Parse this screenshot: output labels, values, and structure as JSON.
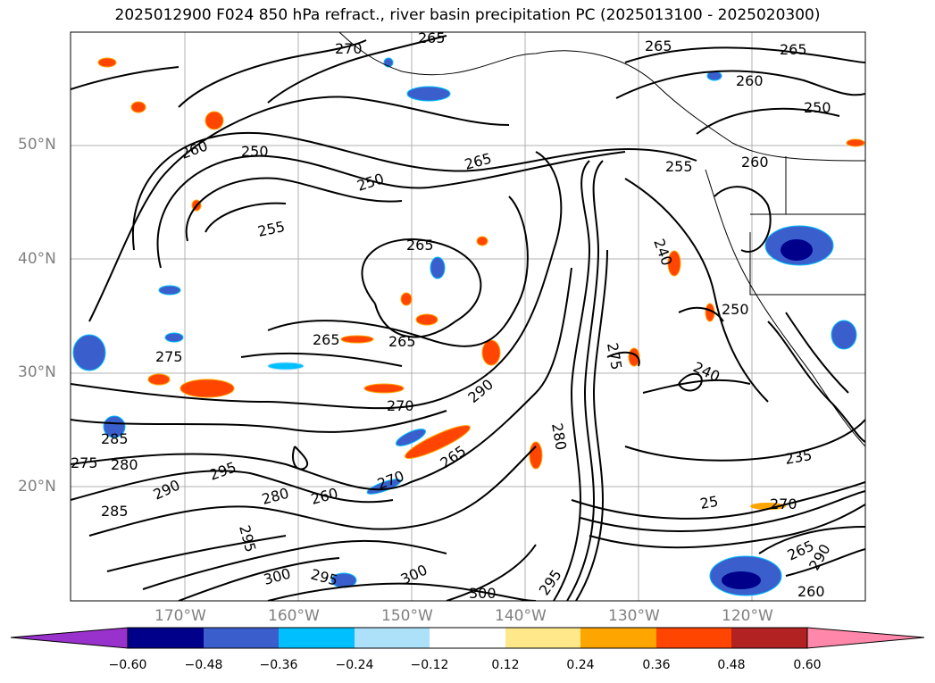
{
  "title": "2025012900 F024 850 hPa refract., river basin precipitation PC (2025013100 - 2025020300)",
  "lat_labels": [
    "50°N",
    "40°N",
    "30°N",
    "20°N"
  ],
  "lon_labels": [
    "170°W",
    "160°W",
    "150°W",
    "140°W",
    "130°W",
    "120°W"
  ],
  "contour_labels": [
    "270",
    "265",
    "265",
    "265",
    "260",
    "250",
    "260",
    "250",
    "250",
    "255",
    "265",
    "255",
    "260",
    "265",
    "265",
    "240",
    "265",
    "275",
    "270",
    "290",
    "285",
    "280",
    "275",
    "295",
    "290",
    "285",
    "280",
    "265",
    "260",
    "295",
    "300",
    "295",
    "300",
    "300",
    "295",
    "280",
    "275",
    "270",
    "240",
    "235",
    "25",
    "270",
    "265",
    "290",
    "260",
    "250"
  ],
  "colorbar": {
    "tick_labels": [
      "−0.60",
      "−0.48",
      "−0.36",
      "−0.24",
      "−0.12",
      "0.12",
      "0.24",
      "0.36",
      "0.48",
      "0.60"
    ],
    "colors": [
      "#9932CC",
      "#00008B",
      "#3A5FCD",
      "#00BFFF",
      "#ADE1FA",
      "#FFFFFF",
      "#FFE88A",
      "#FFA500",
      "#FF4500",
      "#B22222",
      "#FF88AA"
    ]
  }
}
